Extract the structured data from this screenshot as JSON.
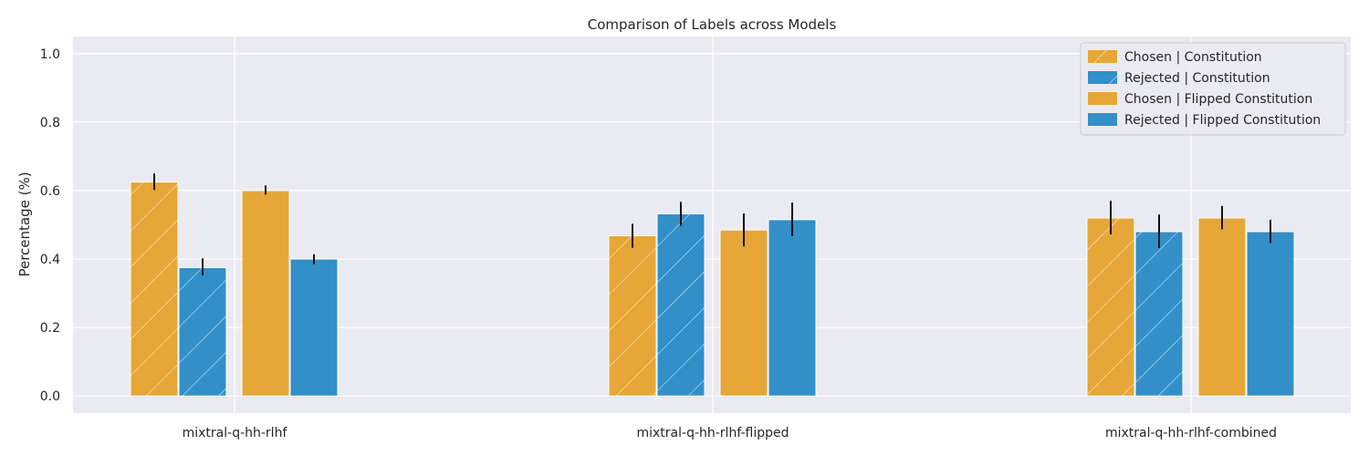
{
  "chart_data": {
    "type": "bar",
    "title": "Comparison of Labels across Models",
    "xlabel": "",
    "ylabel": "Percentage (%)",
    "ylim": [
      -0.05,
      1.05
    ],
    "yticks": [
      0.0,
      0.2,
      0.4,
      0.6,
      0.8,
      1.0
    ],
    "ytick_labels": [
      "0.0",
      "0.2",
      "0.4",
      "0.6",
      "0.8",
      "1.0"
    ],
    "categories": [
      "mixtral-q-hh-rlhf",
      "mixtral-q-hh-rlhf-flipped",
      "mixtral-q-hh-rlhf-combined"
    ],
    "series": [
      {
        "name": "Chosen | Constitution",
        "color": "#E69F23",
        "hatch": true,
        "values": [
          0.625,
          0.468,
          0.52
        ],
        "err_low": [
          0.602,
          0.433,
          0.472
        ],
        "err_high": [
          0.65,
          0.503,
          0.57
        ]
      },
      {
        "name": "Rejected | Constitution",
        "color": "#1F85C2",
        "hatch": true,
        "values": [
          0.375,
          0.532,
          0.48
        ],
        "err_low": [
          0.352,
          0.497,
          0.432
        ],
        "err_high": [
          0.402,
          0.567,
          0.53
        ]
      },
      {
        "name": "Chosen | Flipped Constitution",
        "color": "#E69F23",
        "hatch": false,
        "values": [
          0.6,
          0.485,
          0.52
        ],
        "err_low": [
          0.588,
          0.437,
          0.487
        ],
        "err_high": [
          0.615,
          0.533,
          0.555
        ]
      },
      {
        "name": "Rejected | Flipped Constitution",
        "color": "#1F85C2",
        "hatch": false,
        "values": [
          0.4,
          0.515,
          0.48
        ],
        "err_low": [
          0.385,
          0.467,
          0.447
        ],
        "err_high": [
          0.414,
          0.565,
          0.515
        ]
      }
    ],
    "grid": true,
    "legend_position": "top-right"
  }
}
